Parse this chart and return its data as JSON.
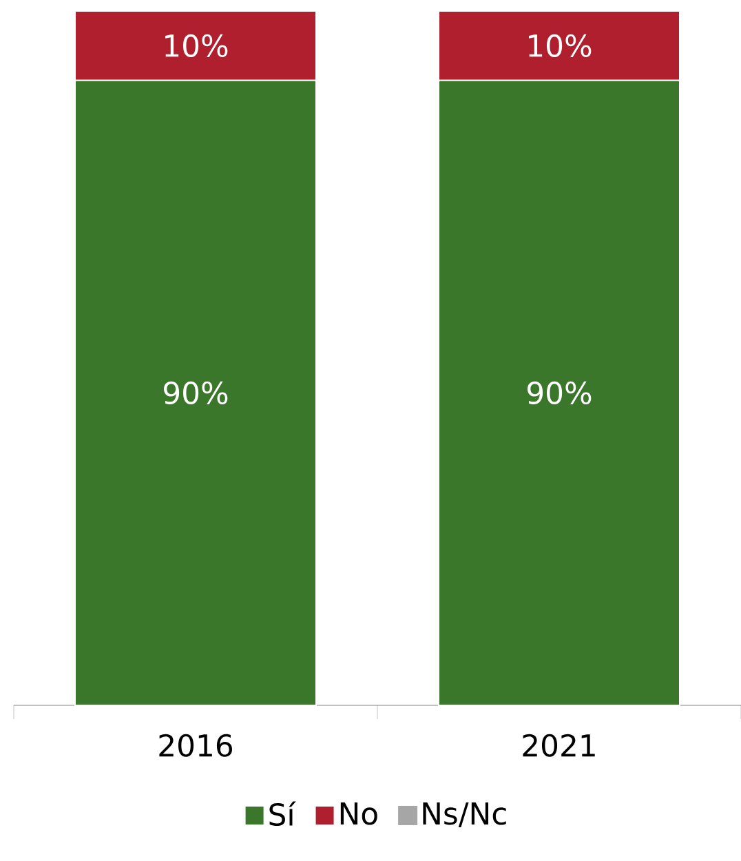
{
  "chart_data": {
    "type": "bar",
    "stacked": true,
    "categories": [
      "2016",
      "2021"
    ],
    "series": [
      {
        "name": "Sí",
        "color": "#3b772b",
        "values": [
          90,
          90
        ],
        "value_labels": [
          "90%",
          "90%"
        ]
      },
      {
        "name": "No",
        "color": "#b01f2e",
        "values": [
          10,
          10
        ],
        "value_labels": [
          "10%",
          "10%"
        ]
      },
      {
        "name": "Ns/Nc",
        "color": "#a6a6a6",
        "values": [
          null,
          null
        ]
      }
    ],
    "legend": "bottom"
  }
}
